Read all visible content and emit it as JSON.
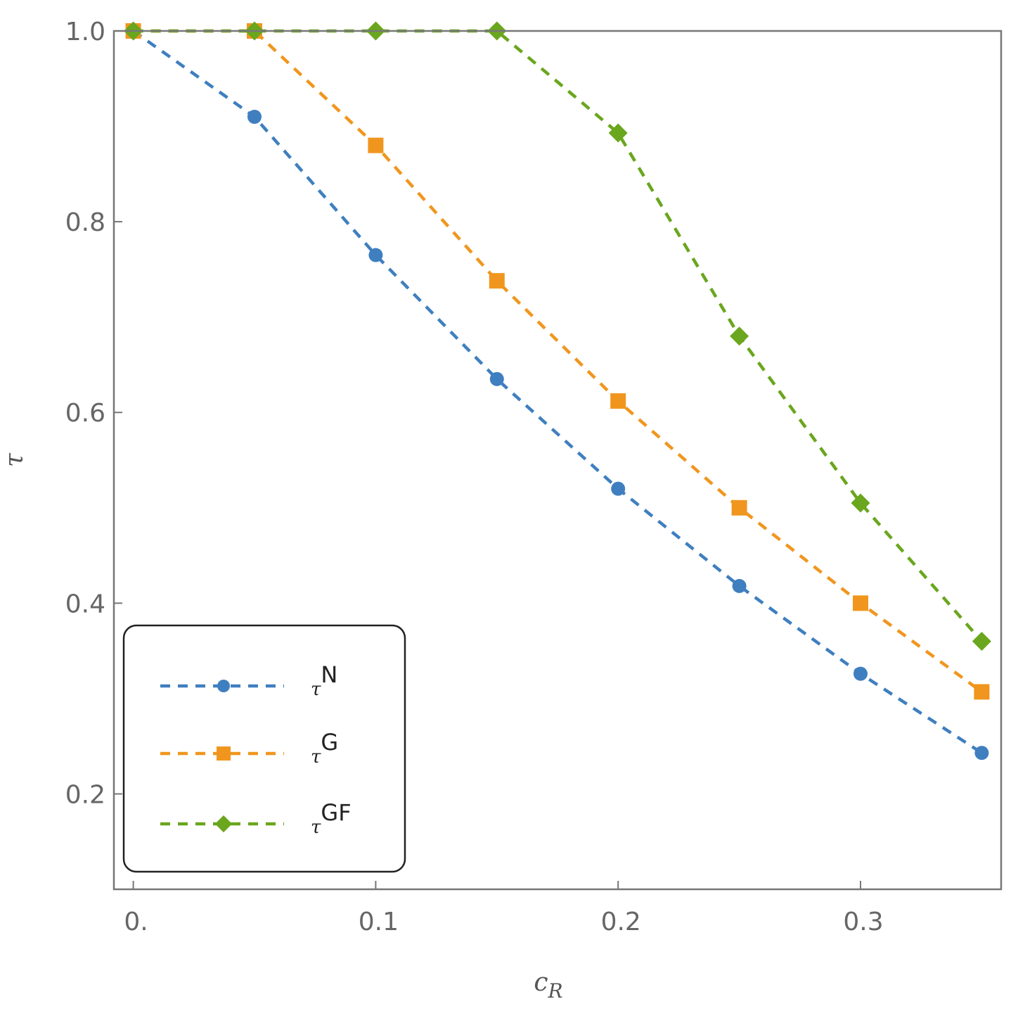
{
  "chart_data": {
    "type": "line",
    "title": "",
    "xlabel": "c",
    "xlabel_sub": "R",
    "ylabel": "τ",
    "xlim": [
      -0.008,
      0.358
    ],
    "ylim": [
      0.1,
      1.0
    ],
    "xticks": [
      0,
      0.1,
      0.2,
      0.3
    ],
    "xtick_labels": [
      "0.",
      "0.1",
      "0.2",
      "0.3"
    ],
    "yticks": [
      0.2,
      0.4,
      0.6,
      0.8,
      1.0
    ],
    "ytick_labels": [
      "0.2",
      "0.4",
      "0.6",
      "0.8",
      "1.0"
    ],
    "grid": false,
    "legend_position": "bottom-left",
    "x": [
      0,
      0.05,
      0.1,
      0.15,
      0.2,
      0.25,
      0.3,
      0.35
    ],
    "series": [
      {
        "name": "τ",
        "sup": "N",
        "color": "#3f7fbf",
        "marker": "circle",
        "values": [
          1.0,
          0.91,
          0.765,
          0.635,
          0.52,
          0.418,
          0.326,
          0.243
        ]
      },
      {
        "name": "τ",
        "sup": "G",
        "color": "#f0961e",
        "marker": "square",
        "values": [
          1.0,
          1.0,
          0.88,
          0.738,
          0.612,
          0.5,
          0.4,
          0.307
        ]
      },
      {
        "name": "τ",
        "sup": "GF",
        "color": "#6aa61e",
        "marker": "diamond",
        "values": [
          1.0,
          1.0,
          1.0,
          1.0,
          0.893,
          0.68,
          0.505,
          0.36
        ]
      }
    ]
  }
}
